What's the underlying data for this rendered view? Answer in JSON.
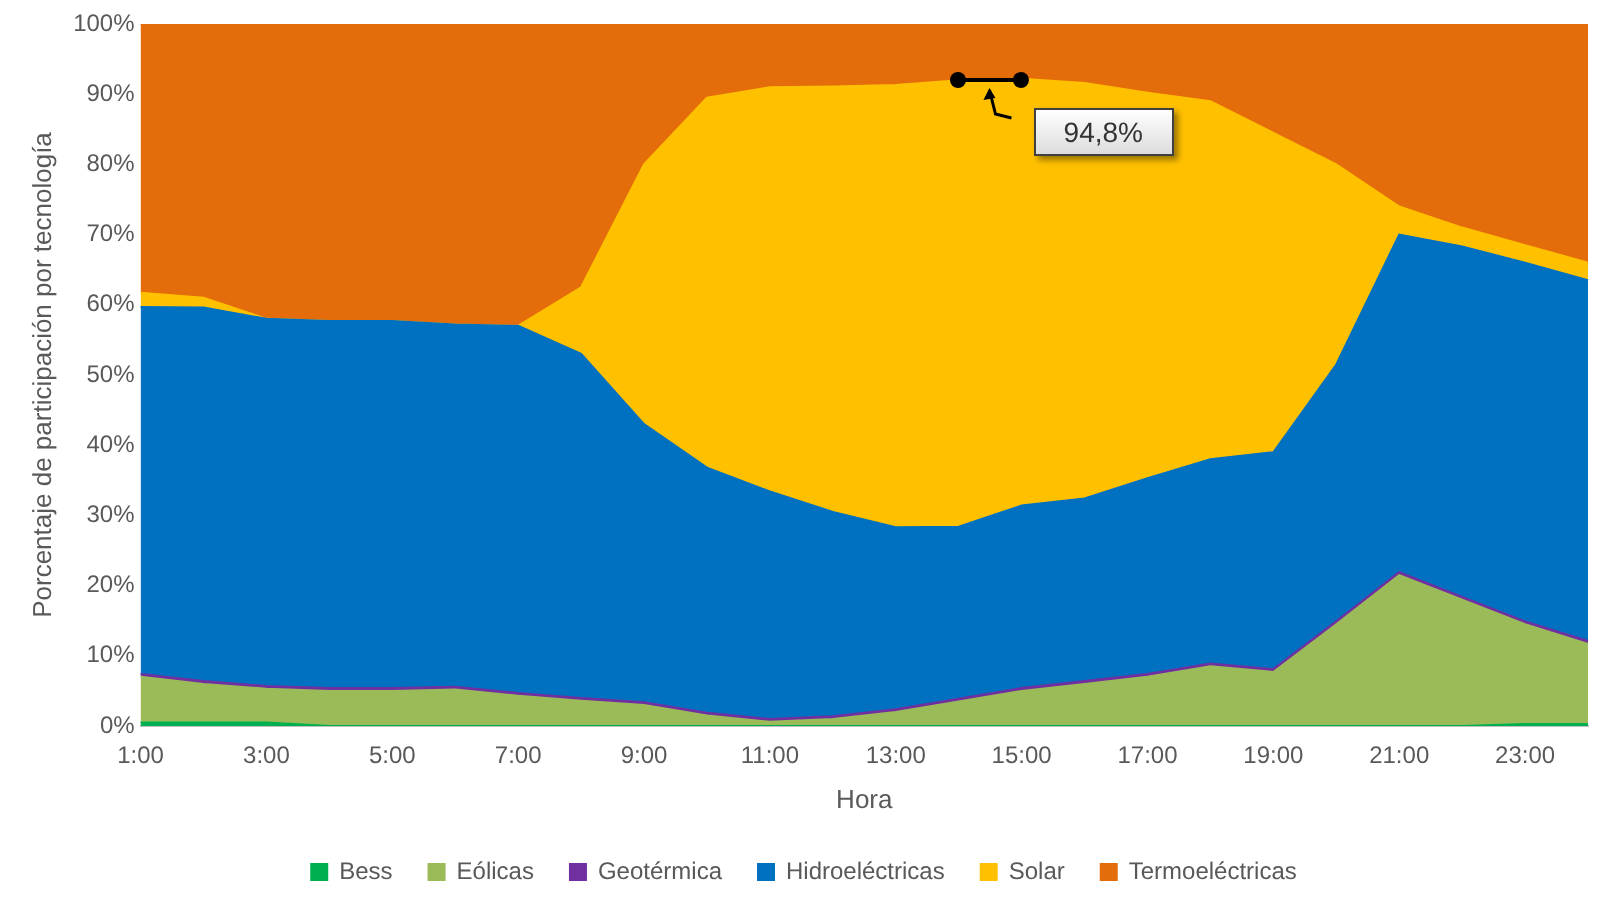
{
  "chart_data": {
    "type": "area",
    "stacked": true,
    "xlabel": "Hora",
    "ylabel": "Porcentaje de participación por tecnología",
    "categories": [
      "1:00",
      null,
      "3:00",
      null,
      "5:00",
      null,
      "7:00",
      null,
      "9:00",
      null,
      "11:00",
      null,
      "13:00",
      null,
      "15:00",
      null,
      "17:00",
      null,
      "19:00",
      null,
      "21:00",
      null,
      "23:00",
      null
    ],
    "ylim": [
      0,
      100
    ],
    "yticks": [
      {
        "value": 0,
        "label": "0%"
      },
      {
        "value": 10,
        "label": "10%"
      },
      {
        "value": 20,
        "label": "20%"
      },
      {
        "value": 30,
        "label": "30%"
      },
      {
        "value": 40,
        "label": "40%"
      },
      {
        "value": 50,
        "label": "50%"
      },
      {
        "value": 60,
        "label": "60%"
      },
      {
        "value": 70,
        "label": "70%"
      },
      {
        "value": 80,
        "label": "80%"
      },
      {
        "value": 90,
        "label": "90%"
      },
      {
        "value": 100,
        "label": "100%"
      }
    ],
    "legend": "bottom",
    "series": [
      {
        "name": "Bess",
        "color": "#00b050",
        "values": [
          0.5,
          0.5,
          0.5,
          0,
          0,
          0,
          0,
          0,
          0,
          0,
          0,
          0,
          0,
          0,
          0,
          0,
          0,
          0,
          0,
          0,
          0,
          0,
          0.3,
          0.3
        ]
      },
      {
        "name": "Eólicas",
        "color": "#9bbb59",
        "values": [
          6.5,
          5.5,
          4.8,
          5,
          5,
          5.2,
          4.3,
          3.6,
          3,
          1.5,
          0.6,
          1,
          2,
          3.5,
          5,
          6,
          7,
          8.5,
          7.7,
          14.5,
          21.5,
          18,
          14.2,
          11.4
        ]
      },
      {
        "name": "Geotérmica",
        "color": "#7030a0",
        "values": [
          0.4,
          0.4,
          0.4,
          0.4,
          0.4,
          0.4,
          0.4,
          0.4,
          0.4,
          0.4,
          0.4,
          0.4,
          0.4,
          0.4,
          0.4,
          0.4,
          0.4,
          0.4,
          0.4,
          0.4,
          0.4,
          0.4,
          0.4,
          0.4
        ]
      },
      {
        "name": "Hidroeléctricas",
        "color": "#0070c0",
        "values": [
          52.3,
          53.2,
          52.3,
          52.3,
          52.3,
          51.6,
          52.3,
          49,
          39.6,
          34.9,
          32.4,
          29.1,
          25.9,
          24.5,
          26,
          26,
          27.9,
          29.1,
          30.9,
          36.6,
          48.1,
          49.9,
          51.1,
          51.4
        ]
      },
      {
        "name": "Solar",
        "color": "#ffc000",
        "values": [
          2,
          1.4,
          0,
          0,
          0,
          0,
          0,
          9.5,
          37,
          52.7,
          57.6,
          60.6,
          63,
          63.6,
          60.8,
          59.2,
          54.9,
          51,
          45.5,
          28.5,
          4,
          2.7,
          2.5,
          2.5
        ]
      },
      {
        "name": "Termoeléctricas",
        "color": "#e46c0a",
        "values": [
          38.3,
          39,
          42,
          42.3,
          42.3,
          42.8,
          43,
          37.5,
          20,
          10.5,
          9,
          8.9,
          8.7,
          8,
          7.8,
          8.4,
          9.8,
          11,
          15.5,
          20,
          26,
          29,
          31.5,
          34
        ]
      }
    ],
    "annotations": [
      "94,8%"
    ]
  }
}
